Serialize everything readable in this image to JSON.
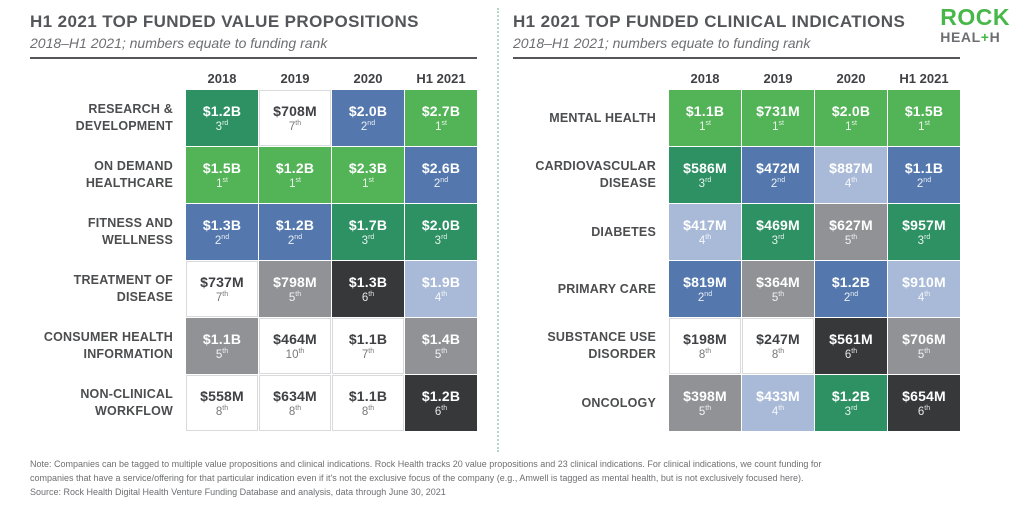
{
  "colors": {
    "rank_1_green": "#52b357",
    "rank_2_blue": "#5478ad",
    "rank_3_dark_green": "#2d9164",
    "rank_4_light_blue": "#a9bad8",
    "rank_5_gray": "#909295",
    "rank_6_black": "#363839",
    "unranked_white": "#ffffff",
    "logo_green": "#47b749",
    "logo_gray": "#6d6e71",
    "title_text": "#55565a",
    "divider_dotted": "#b5d8c6"
  },
  "logo": {
    "line1": "ROCK",
    "line2_pre": "HEAL",
    "line2_plus": "+",
    "line2_post": "H"
  },
  "chart_data": [
    {
      "type": "heatmap",
      "title": "H1 2021 TOP FUNDED VALUE PROPOSITIONS",
      "subtitle": "2018–H1 2021; numbers equate to funding rank",
      "legend_note": "cell color encodes funding rank; grid off",
      "columns": [
        "2018",
        "2019",
        "2020",
        "H1 2021"
      ],
      "rows": [
        {
          "label": "RESEARCH & DEVELOPMENT",
          "cells": [
            {
              "amount": "$1.2B",
              "rank": 3,
              "ordinal": "rd",
              "tone": "green_dark"
            },
            {
              "amount": "$708M",
              "rank": 7,
              "ordinal": "th",
              "tone": "white"
            },
            {
              "amount": "$2.0B",
              "rank": 2,
              "ordinal": "nd",
              "tone": "blue"
            },
            {
              "amount": "$2.7B",
              "rank": 1,
              "ordinal": "st",
              "tone": "green"
            }
          ]
        },
        {
          "label": "ON DEMAND HEALTHCARE",
          "cells": [
            {
              "amount": "$1.5B",
              "rank": 1,
              "ordinal": "st",
              "tone": "green"
            },
            {
              "amount": "$1.2B",
              "rank": 1,
              "ordinal": "st",
              "tone": "green"
            },
            {
              "amount": "$2.3B",
              "rank": 1,
              "ordinal": "st",
              "tone": "green"
            },
            {
              "amount": "$2.6B",
              "rank": 2,
              "ordinal": "nd",
              "tone": "blue"
            }
          ]
        },
        {
          "label": "FITNESS AND WELLNESS",
          "cells": [
            {
              "amount": "$1.3B",
              "rank": 2,
              "ordinal": "nd",
              "tone": "blue"
            },
            {
              "amount": "$1.2B",
              "rank": 2,
              "ordinal": "nd",
              "tone": "blue"
            },
            {
              "amount": "$1.7B",
              "rank": 3,
              "ordinal": "rd",
              "tone": "green_dark"
            },
            {
              "amount": "$2.0B",
              "rank": 3,
              "ordinal": "rd",
              "tone": "green_dark"
            }
          ]
        },
        {
          "label": "TREATMENT OF DISEASE",
          "cells": [
            {
              "amount": "$737M",
              "rank": 7,
              "ordinal": "th",
              "tone": "white"
            },
            {
              "amount": "$798M",
              "rank": 5,
              "ordinal": "th",
              "tone": "gray"
            },
            {
              "amount": "$1.3B",
              "rank": 6,
              "ordinal": "th",
              "tone": "black"
            },
            {
              "amount": "$1.9B",
              "rank": 4,
              "ordinal": "th",
              "tone": "light_blue"
            }
          ]
        },
        {
          "label": "CONSUMER HEALTH INFORMATION",
          "cells": [
            {
              "amount": "$1.1B",
              "rank": 5,
              "ordinal": "th",
              "tone": "gray"
            },
            {
              "amount": "$464M",
              "rank": 10,
              "ordinal": "th",
              "tone": "white"
            },
            {
              "amount": "$1.1B",
              "rank": 7,
              "ordinal": "th",
              "tone": "white"
            },
            {
              "amount": "$1.4B",
              "rank": 5,
              "ordinal": "th",
              "tone": "gray"
            }
          ]
        },
        {
          "label": "NON-CLINICAL WORKFLOW",
          "cells": [
            {
              "amount": "$558M",
              "rank": 8,
              "ordinal": "th",
              "tone": "white"
            },
            {
              "amount": "$634M",
              "rank": 8,
              "ordinal": "th",
              "tone": "white"
            },
            {
              "amount": "$1.1B",
              "rank": 8,
              "ordinal": "th",
              "tone": "white"
            },
            {
              "amount": "$1.2B",
              "rank": 6,
              "ordinal": "th",
              "tone": "black"
            }
          ]
        }
      ]
    },
    {
      "type": "heatmap",
      "title": "H1 2021 TOP FUNDED CLINICAL INDICATIONS",
      "subtitle": "2018–H1 2021; numbers equate to funding rank",
      "legend_note": "cell color encodes funding rank; grid off",
      "columns": [
        "2018",
        "2019",
        "2020",
        "H1 2021"
      ],
      "rows": [
        {
          "label": "MENTAL HEALTH",
          "cells": [
            {
              "amount": "$1.1B",
              "rank": 1,
              "ordinal": "st",
              "tone": "green"
            },
            {
              "amount": "$731M",
              "rank": 1,
              "ordinal": "st",
              "tone": "green"
            },
            {
              "amount": "$2.0B",
              "rank": 1,
              "ordinal": "st",
              "tone": "green"
            },
            {
              "amount": "$1.5B",
              "rank": 1,
              "ordinal": "st",
              "tone": "green"
            }
          ]
        },
        {
          "label": "CARDIOVASCULAR DISEASE",
          "cells": [
            {
              "amount": "$586M",
              "rank": 3,
              "ordinal": "rd",
              "tone": "green_dark"
            },
            {
              "amount": "$472M",
              "rank": 2,
              "ordinal": "nd",
              "tone": "blue"
            },
            {
              "amount": "$887M",
              "rank": 4,
              "ordinal": "th",
              "tone": "light_blue"
            },
            {
              "amount": "$1.1B",
              "rank": 2,
              "ordinal": "nd",
              "tone": "blue"
            }
          ]
        },
        {
          "label": "DIABETES",
          "cells": [
            {
              "amount": "$417M",
              "rank": 4,
              "ordinal": "th",
              "tone": "light_blue"
            },
            {
              "amount": "$469M",
              "rank": 3,
              "ordinal": "rd",
              "tone": "green_dark"
            },
            {
              "amount": "$627M",
              "rank": 5,
              "ordinal": "th",
              "tone": "gray"
            },
            {
              "amount": "$957M",
              "rank": 3,
              "ordinal": "rd",
              "tone": "green_dark"
            }
          ]
        },
        {
          "label": "PRIMARY CARE",
          "cells": [
            {
              "amount": "$819M",
              "rank": 2,
              "ordinal": "nd",
              "tone": "blue"
            },
            {
              "amount": "$364M",
              "rank": 5,
              "ordinal": "th",
              "tone": "gray"
            },
            {
              "amount": "$1.2B",
              "rank": 2,
              "ordinal": "nd",
              "tone": "blue"
            },
            {
              "amount": "$910M",
              "rank": 4,
              "ordinal": "th",
              "tone": "light_blue"
            }
          ]
        },
        {
          "label": "SUBSTANCE USE DISORDER",
          "cells": [
            {
              "amount": "$198M",
              "rank": 8,
              "ordinal": "th",
              "tone": "white"
            },
            {
              "amount": "$247M",
              "rank": 8,
              "ordinal": "th",
              "tone": "white"
            },
            {
              "amount": "$561M",
              "rank": 6,
              "ordinal": "th",
              "tone": "black"
            },
            {
              "amount": "$706M",
              "rank": 5,
              "ordinal": "th",
              "tone": "gray"
            }
          ]
        },
        {
          "label": "ONCOLOGY",
          "cells": [
            {
              "amount": "$398M",
              "rank": 5,
              "ordinal": "th",
              "tone": "gray"
            },
            {
              "amount": "$433M",
              "rank": 4,
              "ordinal": "th",
              "tone": "light_blue"
            },
            {
              "amount": "$1.2B",
              "rank": 3,
              "ordinal": "rd",
              "tone": "green_dark"
            },
            {
              "amount": "$654M",
              "rank": 6,
              "ordinal": "th",
              "tone": "black"
            }
          ]
        }
      ]
    }
  ],
  "footnote": {
    "note_line1": "Note: Companies can be tagged to multiple value propositions and clinical indications. Rock Health tracks 20 value propositions and 23 clinical indications. For clinical indications, we count funding for",
    "note_line2": "companies that have a service/offering for that particular indication even if it's not the exclusive focus of the company (e.g., Amwell is tagged as mental health, but is not exclusively focused here).",
    "source_line": "Source: Rock Health Digital Health Venture Funding Database and analysis, data through June 30, 2021"
  }
}
